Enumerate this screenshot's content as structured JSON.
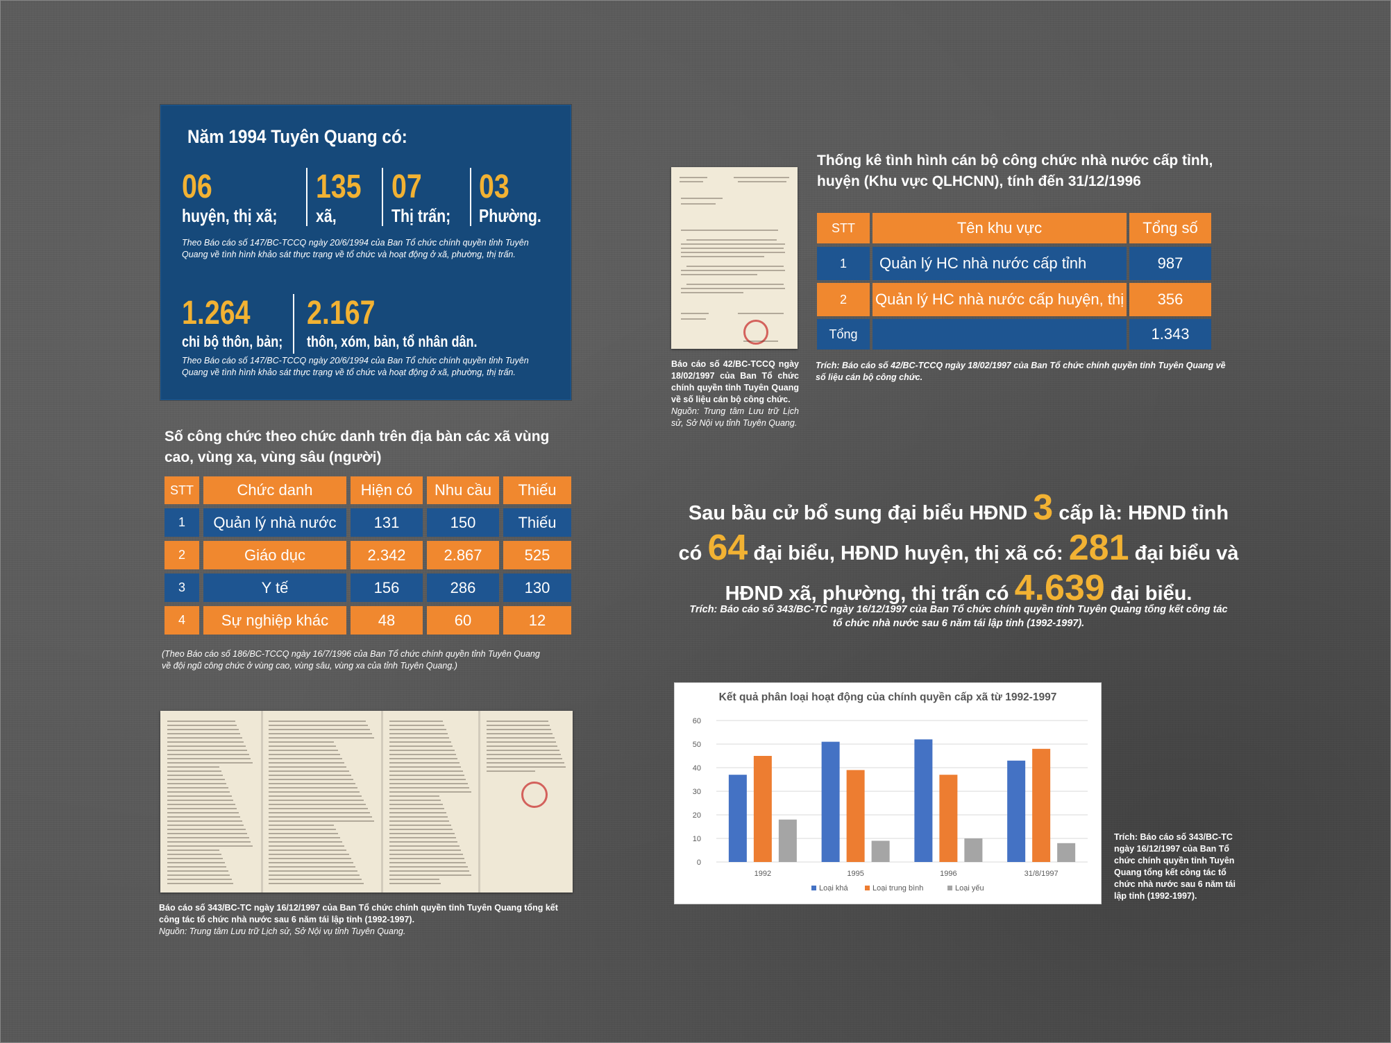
{
  "panel1994": {
    "title": "Năm 1994 Tuyên Quang có:",
    "stats_row1": [
      {
        "num": "06",
        "label": "huyện, thị xã;"
      },
      {
        "num": "135",
        "label": "xã,"
      },
      {
        "num": "07",
        "label": "Thị trấn;"
      },
      {
        "num": "03",
        "label": "Phường."
      }
    ],
    "note1": "Theo Báo cáo số 147/BC-TCCQ ngày 20/6/1994 của Ban Tổ chức chính quyền tỉnh Tuyên Quang về tình hình khảo sát thực trạng về tổ chức và hoạt động ở xã, phường, thị trấn.",
    "stats_row2": [
      {
        "num": "1.264",
        "label": "chi bộ thôn, bản;"
      },
      {
        "num": "2.167",
        "label": "thôn, xóm, bản, tổ nhân dân."
      }
    ],
    "note2": "Theo Báo cáo số 147/BC-TCCQ ngày 20/6/1994 của Ban Tổ chức chính quyền tỉnh Tuyên Quang về tình hình khảo sát thực trạng về tổ chức và hoạt động ở xã, phường, thị trấn."
  },
  "table_officials": {
    "title": "Thống kê tình hình cán bộ công chức nhà nước cấp tỉnh, huyện (Khu vực QLHCNN), tính đến 31/12/1996",
    "headers": [
      "STT",
      "Tên khu vực",
      "Tổng số"
    ],
    "rows": [
      [
        "1",
        "Quản lý HC nhà nước cấp tỉnh",
        "987"
      ],
      [
        "2",
        "Quản lý HC nhà nước cấp huyện, thị",
        "356"
      ],
      [
        "Tổng",
        "",
        "1.343"
      ]
    ],
    "note": "Trích: Báo cáo số 42/BC-TCCQ ngày 18/02/1997 của Ban Tổ chức chính quyền tỉnh Tuyên Quang về số liệu cán bộ công chức."
  },
  "doc1_caption": {
    "bold": "Báo cáo số 42/BC-TCCQ ngày 18/02/1997 của Ban Tổ chức chính quyền tỉnh Tuyên Quang về số liệu cán bộ công chức.",
    "source": "Nguồn: Trung tâm Lưu trữ Lịch sử, Sở Nội vụ tỉnh Tuyên Quang."
  },
  "table_commune": {
    "title": "Số công chức theo chức danh trên địa bàn các xã vùng cao, vùng xa, vùng sâu (người)",
    "headers": [
      "STT",
      "Chức danh",
      "Hiện có",
      "Nhu cầu",
      "Thiếu"
    ],
    "rows": [
      [
        "1",
        "Quản lý nhà nước",
        "131",
        "150",
        "Thiếu"
      ],
      [
        "2",
        "Giáo dục",
        "2.342",
        "2.867",
        "525"
      ],
      [
        "3",
        "Y tế",
        "156",
        "286",
        "130"
      ],
      [
        "4",
        "Sự nghiệp khác",
        "48",
        "60",
        "12"
      ]
    ],
    "note": "(Theo Báo cáo số 186/BC-TCCQ ngày 16/7/1996 của Ban Tổ chức chính quyền tỉnh Tuyên Quang về đội ngũ công chức ở vùng cao, vùng sâu, vùng xa của tỉnh Tuyên Quang.)"
  },
  "hdnd": {
    "p1": "Sau bầu cử bổ sung đại biểu HĐND",
    "n1": "3",
    "p2": "cấp là: HĐND tỉnh có",
    "n2": "64",
    "p3": "đại biểu, HĐND huyện, thị xã có:",
    "n3": "281",
    "p4": "đại biểu và HĐND xã, phường, thị trấn có",
    "n4": "4.639",
    "p5": "đại biểu.",
    "note": "Trích: Báo cáo số 343/BC-TC ngày 16/12/1997 của Ban Tổ chức chính quyền tỉnh Tuyên Quang tổng kết công tác tổ chức nhà nước sau 6 năm tái lập tỉnh (1992-1997)."
  },
  "doc2_caption": {
    "bold": "Báo cáo số 343/BC-TC ngày 16/12/1997 của Ban Tổ chức chính quyền tỉnh Tuyên Quang tổng kết công tác tổ chức nhà nước sau 6 năm tái lập tỉnh (1992-1997).",
    "source": "Nguồn: Trung tâm Lưu trữ Lịch sử, Sở Nội vụ tỉnh Tuyên Quang."
  },
  "chart_note": "Trích: Báo cáo số 343/BC-TC ngày 16/12/1997 của Ban Tổ chức chính quyền tỉnh Tuyên Quang tổng kết công tác tổ chức nhà nước sau 6 năm tái lập tỉnh (1992-1997).",
  "chart_data": {
    "type": "bar",
    "title": "Kết quả phân loại hoạt động của chính quyền cấp xã từ 1992-1997",
    "categories": [
      "1992",
      "1995",
      "1996",
      "31/8/1997"
    ],
    "series": [
      {
        "name": "Loại khá",
        "color": "#4472c4",
        "values": [
          37,
          51,
          52,
          43
        ]
      },
      {
        "name": "Loại trung bình",
        "color": "#ed7d31",
        "values": [
          45,
          39,
          37,
          48
        ]
      },
      {
        "name": "Loại yếu",
        "color": "#a5a5a5",
        "values": [
          18,
          9,
          10,
          8
        ]
      }
    ],
    "ylim": [
      0,
      60
    ],
    "yticks": [
      0,
      10,
      20,
      30,
      40,
      50,
      60
    ],
    "grid": true,
    "legend": "bottom"
  }
}
